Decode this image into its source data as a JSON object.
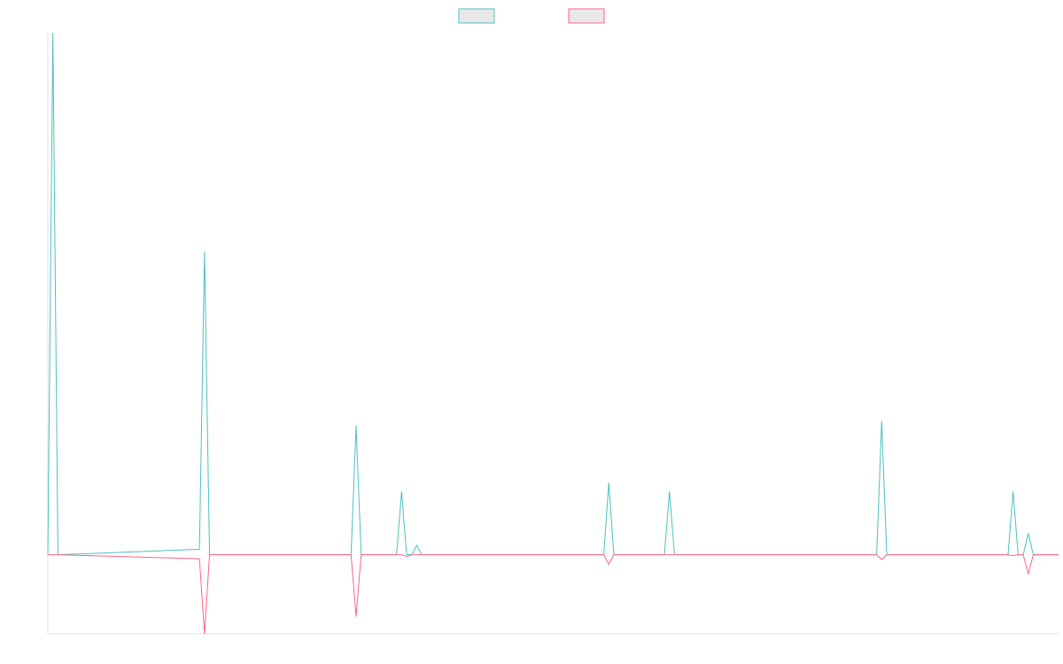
{
  "chart_data": {
    "type": "line",
    "title": "",
    "xlabel": "",
    "ylabel": "",
    "grid": false,
    "legend_placement": "top-center",
    "x": [
      0,
      1,
      2,
      30,
      31,
      32,
      33,
      60,
      61,
      62,
      63,
      64,
      65,
      69,
      70,
      71,
      72,
      73,
      74,
      110,
      111,
      112,
      122,
      123,
      124,
      164,
      165,
      166,
      190,
      191,
      192,
      193,
      194,
      195,
      196,
      197,
      198,
      199,
      200
    ],
    "ylim": [
      -100,
      660
    ],
    "series": [
      {
        "name": "",
        "color": "#4bc0c0",
        "fill": "#e8e8e8",
        "values": [
          0,
          660,
          0,
          7,
          383,
          0,
          0,
          0,
          163,
          0,
          0,
          0,
          0,
          0,
          80,
          0,
          0,
          12,
          0,
          0,
          91,
          0,
          0,
          80,
          0,
          0,
          169,
          0,
          0,
          80,
          0,
          0,
          27,
          0,
          0,
          0,
          0,
          0,
          0
        ]
      },
      {
        "name": "",
        "color": "#ff6384",
        "fill": "#e8e8e8",
        "values": [
          0,
          0,
          0,
          -5,
          -100,
          0,
          0,
          0,
          -78,
          0,
          0,
          0,
          0,
          0,
          0,
          -2,
          0,
          0,
          0,
          0,
          -12,
          0,
          0,
          0,
          0,
          0,
          -6,
          0,
          0,
          -1,
          0,
          0,
          -24,
          0,
          0,
          0,
          0,
          0,
          0
        ]
      }
    ]
  }
}
